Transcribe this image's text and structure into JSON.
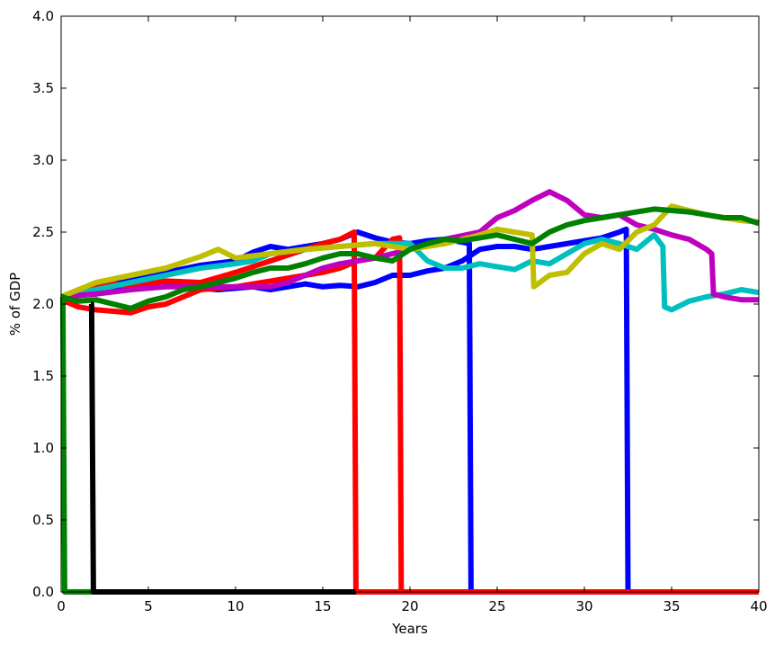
{
  "chart_data": {
    "type": "line",
    "title": "",
    "xlabel": "Years",
    "ylabel": "% of GDP",
    "xlim": [
      0,
      40
    ],
    "ylim": [
      0.0,
      4.0
    ],
    "xticks": [
      0,
      5,
      10,
      15,
      20,
      25,
      30,
      35,
      40
    ],
    "xtick_labels": [
      "0",
      "5",
      "10",
      "15",
      "20",
      "25",
      "30",
      "35",
      "40"
    ],
    "yticks": [
      0.0,
      0.5,
      1.0,
      1.5,
      2.0,
      2.5,
      3.0,
      3.5,
      4.0
    ],
    "ytick_labels": [
      "0.0",
      "0.5",
      "1.0",
      "1.5",
      "2.0",
      "2.5",
      "3.0",
      "3.5",
      "4.0"
    ],
    "grid": false,
    "series": [
      {
        "color": "#0000ff",
        "x": [
          0,
          1,
          2,
          4,
          5,
          6,
          8,
          10,
          11,
          12,
          13,
          14,
          15,
          16,
          17,
          18,
          19,
          20,
          21,
          22,
          23,
          23.4,
          23.5,
          40
        ],
        "y": [
          2.05,
          2.07,
          2.1,
          2.17,
          2.2,
          2.22,
          2.27,
          2.3,
          2.36,
          2.4,
          2.38,
          2.4,
          2.42,
          2.45,
          2.5,
          2.46,
          2.43,
          2.42,
          2.44,
          2.45,
          2.43,
          2.42,
          0.0,
          0.0
        ]
      },
      {
        "color": "#0000ff",
        "x": [
          0,
          2,
          3,
          5,
          7,
          9,
          11,
          12,
          13,
          14,
          15,
          16,
          17,
          18,
          19,
          20,
          21,
          22,
          23,
          24,
          25,
          26,
          27,
          28,
          29,
          30,
          31,
          32,
          32.4,
          32.5,
          40
        ],
        "y": [
          2.05,
          2.07,
          2.1,
          2.15,
          2.12,
          2.1,
          2.12,
          2.1,
          2.12,
          2.14,
          2.12,
          2.13,
          2.12,
          2.15,
          2.2,
          2.2,
          2.23,
          2.25,
          2.3,
          2.38,
          2.4,
          2.4,
          2.38,
          2.4,
          2.42,
          2.44,
          2.46,
          2.5,
          2.52,
          0.0,
          0.0
        ]
      },
      {
        "color": "#ff0000",
        "x": [
          0,
          1,
          2,
          3,
          4,
          5,
          6,
          8,
          10,
          12,
          14,
          15,
          16,
          16.8,
          16.9,
          40
        ],
        "y": [
          2.05,
          2.1,
          2.13,
          2.14,
          2.12,
          2.14,
          2.16,
          2.15,
          2.22,
          2.3,
          2.38,
          2.42,
          2.45,
          2.5,
          0.0,
          0.0
        ]
      },
      {
        "color": "#ff0000",
        "x": [
          0,
          1,
          2,
          3,
          4,
          5,
          6,
          7,
          8,
          10,
          12,
          14,
          15,
          16,
          17,
          18,
          19,
          19.4,
          19.5,
          40
        ],
        "y": [
          2.03,
          1.98,
          1.96,
          1.95,
          1.94,
          1.98,
          2.0,
          2.05,
          2.1,
          2.12,
          2.16,
          2.2,
          2.22,
          2.25,
          2.3,
          2.32,
          2.45,
          2.46,
          0.0,
          0.0
        ]
      },
      {
        "color": "#00bfbf",
        "x": [
          0,
          2,
          4,
          6,
          8,
          10,
          11,
          12,
          14,
          16,
          18,
          20,
          21,
          22,
          23,
          24,
          25,
          26,
          27,
          28,
          29,
          30,
          31,
          32,
          33,
          34,
          34.5,
          34.6,
          35,
          36,
          37,
          38,
          39,
          40
        ],
        "y": [
          2.05,
          2.1,
          2.15,
          2.2,
          2.25,
          2.28,
          2.3,
          2.35,
          2.38,
          2.4,
          2.42,
          2.42,
          2.3,
          2.25,
          2.25,
          2.28,
          2.26,
          2.24,
          2.3,
          2.28,
          2.35,
          2.42,
          2.45,
          2.42,
          2.38,
          2.48,
          2.4,
          1.98,
          1.96,
          2.02,
          2.05,
          2.07,
          2.1,
          2.08
        ]
      },
      {
        "color": "#bf00bf",
        "x": [
          0,
          2,
          4,
          6,
          8,
          10,
          12,
          13,
          14,
          15,
          16,
          17,
          18,
          19,
          20,
          22,
          24,
          25,
          26,
          27,
          28,
          29,
          30,
          31,
          32,
          33,
          34,
          35,
          36,
          37,
          37.3,
          37.4,
          38,
          39,
          40
        ],
        "y": [
          2.05,
          2.07,
          2.1,
          2.12,
          2.12,
          2.12,
          2.12,
          2.15,
          2.2,
          2.25,
          2.28,
          2.3,
          2.32,
          2.35,
          2.38,
          2.45,
          2.5,
          2.6,
          2.65,
          2.72,
          2.78,
          2.72,
          2.62,
          2.6,
          2.62,
          2.55,
          2.52,
          2.48,
          2.45,
          2.38,
          2.35,
          2.07,
          2.05,
          2.03,
          2.03
        ]
      },
      {
        "color": "#bfbf00",
        "x": [
          0,
          2,
          4,
          6,
          8,
          9,
          10,
          12,
          14,
          16,
          18,
          20,
          22,
          24,
          25,
          26,
          27,
          27.1,
          28,
          29,
          30,
          31,
          32,
          33,
          34,
          35,
          36,
          37,
          38,
          39,
          40
        ],
        "y": [
          2.05,
          2.15,
          2.2,
          2.25,
          2.33,
          2.38,
          2.32,
          2.35,
          2.38,
          2.4,
          2.42,
          2.38,
          2.42,
          2.48,
          2.52,
          2.5,
          2.48,
          2.12,
          2.2,
          2.22,
          2.35,
          2.42,
          2.38,
          2.5,
          2.55,
          2.68,
          2.65,
          2.62,
          2.6,
          2.58,
          2.57
        ]
      },
      {
        "color": "#008000",
        "x": [
          0,
          0.1,
          0.2,
          2,
          40
        ],
        "y": [
          2.05,
          2.05,
          0.0,
          0.0,
          0.0
        ]
      },
      {
        "color": "#008000",
        "x": [
          0,
          1,
          2,
          3,
          4,
          5,
          6,
          7,
          8,
          9,
          10,
          11,
          12,
          13,
          14,
          15,
          16,
          17,
          18,
          19,
          20,
          21,
          22,
          23,
          24,
          25,
          26,
          27,
          28,
          29,
          30,
          31,
          32,
          33,
          34,
          35,
          36,
          37,
          38,
          39,
          40
        ],
        "y": [
          2.05,
          2.02,
          2.03,
          2.0,
          1.97,
          2.02,
          2.05,
          2.1,
          2.12,
          2.15,
          2.18,
          2.22,
          2.25,
          2.25,
          2.28,
          2.32,
          2.35,
          2.35,
          2.32,
          2.3,
          2.38,
          2.42,
          2.45,
          2.44,
          2.46,
          2.48,
          2.45,
          2.42,
          2.5,
          2.55,
          2.58,
          2.6,
          2.62,
          2.64,
          2.66,
          2.65,
          2.64,
          2.62,
          2.6,
          2.6,
          2.56
        ]
      },
      {
        "color": "#000000",
        "x": [
          1.7,
          1.75,
          1.85,
          40
        ],
        "y": [
          2.0,
          2.0,
          0.0,
          0.0
        ]
      },
      {
        "color": "#ff0000",
        "x": [
          16.9,
          40
        ],
        "y": [
          0.0,
          0.0
        ]
      }
    ]
  }
}
